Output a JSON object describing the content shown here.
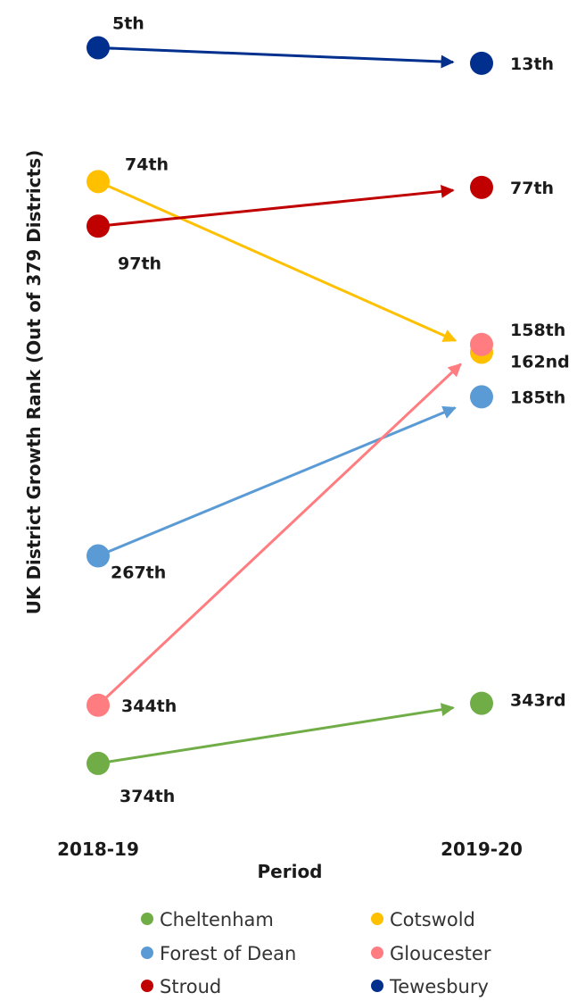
{
  "chart_data": {
    "type": "line",
    "title": "",
    "xlabel": "Period",
    "ylabel": "UK District Growth Rank (Out of 379 Districts)",
    "categories": [
      "2018-19",
      "2019-20"
    ],
    "y_axis": {
      "reversed": true,
      "min": 1,
      "max": 379,
      "ticks_visible": false
    },
    "grid": false,
    "legend_position": "bottom",
    "series": [
      {
        "name": "Cheltenham",
        "color": "#70AD47",
        "values": [
          374,
          343
        ],
        "labels": [
          "374th",
          "343rd"
        ]
      },
      {
        "name": "Cotswold",
        "color": "#FFC000",
        "values": [
          74,
          162
        ],
        "labels": [
          "74th",
          "162nd"
        ]
      },
      {
        "name": "Forest of Dean",
        "color": "#5B9BD5",
        "values": [
          267,
          185
        ],
        "labels": [
          "267th",
          "185th"
        ]
      },
      {
        "name": "Gloucester",
        "color": "#FF7C80",
        "values": [
          344,
          158
        ],
        "labels": [
          "344th",
          "158th"
        ]
      },
      {
        "name": "Stroud",
        "color": "#C00000",
        "values": [
          97,
          77
        ],
        "labels": [
          "97th",
          "77th"
        ]
      },
      {
        "name": "Tewesbury",
        "color": "#002F8E",
        "values": [
          5,
          13
        ],
        "labels": [
          "5th",
          "13th"
        ]
      }
    ]
  }
}
